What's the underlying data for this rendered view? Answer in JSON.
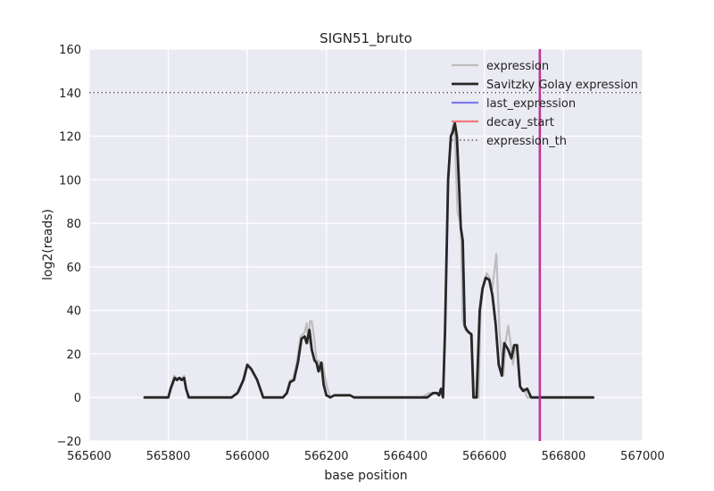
{
  "chart_data": {
    "type": "line",
    "title": "SIGN51_bruto",
    "xlabel": "base position",
    "ylabel": "log2(reads)",
    "xlim": [
      565600,
      567000
    ],
    "ylim": [
      -20,
      160
    ],
    "xticks": [
      565600,
      565800,
      566000,
      566200,
      566400,
      566600,
      566800,
      567000
    ],
    "yticks": [
      -20,
      0,
      20,
      40,
      60,
      80,
      100,
      120,
      140,
      160
    ],
    "xtick_labels": [
      "565600",
      "565800",
      "566000",
      "566200",
      "566400",
      "566600",
      "566800",
      "567000"
    ],
    "ytick_labels": [
      "−20",
      "0",
      "20",
      "40",
      "60",
      "80",
      "100",
      "120",
      "140",
      "160"
    ],
    "grid": true,
    "legend_position": "top-right",
    "legend": [
      "expression",
      "Savitzky Golay expression",
      "last_expression",
      "decay_start",
      "expression_th"
    ],
    "colors": {
      "expression": "#bdbdbd",
      "savgol": "#262626",
      "last_expression": "#7b7bf0",
      "decay_start": "#f07b7b",
      "overlap_line": "#c0339b",
      "threshold": "#444444",
      "background": "#eaeaf2",
      "grid": "#ffffff"
    },
    "expression_th": 140,
    "vertical_markers": {
      "last_expression": 566740,
      "decay_start": 566740
    },
    "series": [
      {
        "name": "expression",
        "x": [
          565740,
          565780,
          565790,
          565800,
          565805,
          565815,
          565820,
          565826,
          565832,
          565840,
          565845,
          565850,
          565900,
          565960,
          565980,
          565995,
          566000,
          566010,
          566025,
          566040,
          566050,
          566090,
          566100,
          566108,
          566115,
          566125,
          566135,
          566145,
          566150,
          566155,
          566158,
          566163,
          566170,
          566175,
          566180,
          566185,
          566190,
          566200,
          566210,
          566220,
          566240,
          566260,
          566270,
          566440,
          566460,
          566480,
          566485,
          566490,
          566495,
          566500,
          566508,
          566515,
          566520,
          566525,
          566532,
          566540,
          566545,
          566552,
          566558,
          566565,
          566575,
          566585,
          566590,
          566597,
          566605,
          566613,
          566620,
          566630,
          566638,
          566643,
          566648,
          566653,
          566660,
          566668,
          566672,
          566678,
          566684,
          566690,
          566695,
          566700,
          566708,
          566716,
          566722,
          566730,
          566740,
          566760,
          566875
        ],
        "y": [
          0,
          0,
          0,
          0,
          4,
          10,
          9,
          9,
          8,
          10,
          4,
          0,
          0,
          0,
          3,
          10,
          15,
          13,
          8,
          0,
          0,
          0,
          2,
          8,
          8,
          16,
          28,
          30,
          34,
          25,
          35,
          35,
          26,
          17,
          17,
          12,
          16,
          6,
          0,
          1,
          1,
          1,
          0,
          0,
          2,
          2,
          1,
          4,
          0,
          30,
          100,
          120,
          125,
          120,
          85,
          80,
          35,
          31,
          30,
          29,
          0,
          0,
          40,
          51,
          57,
          55,
          50,
          66,
          30,
          20,
          10,
          25,
          33,
          22,
          15,
          23,
          24,
          5,
          3,
          4,
          0,
          0,
          0,
          0,
          0,
          0,
          0
        ]
      },
      {
        "name": "Savitzky Golay expression",
        "x": [
          565740,
          565780,
          565790,
          565800,
          565806,
          565816,
          565822,
          565828,
          565834,
          565840,
          565845,
          565852,
          565900,
          565960,
          565975,
          565990,
          566000,
          566010,
          566025,
          566040,
          566050,
          566090,
          566100,
          566108,
          566118,
          566128,
          566137,
          566145,
          566150,
          566157,
          566163,
          566170,
          566175,
          566180,
          566187,
          566193,
          566200,
          566210,
          566220,
          566240,
          566260,
          566270,
          566440,
          566455,
          566470,
          566480,
          566485,
          566490,
          566495,
          566500,
          566508,
          566515,
          566520,
          566525,
          566530,
          566535,
          566540,
          566545,
          566550,
          566555,
          566560,
          566567,
          566572,
          566580,
          566588,
          566595,
          566603,
          566612,
          566620,
          566628,
          566636,
          566644,
          566650,
          566660,
          566668,
          566675,
          566682,
          566690,
          566698,
          566708,
          566718,
          566725,
          566740,
          566760,
          566875
        ],
        "y": [
          0,
          0,
          0,
          0,
          4,
          9,
          8,
          9,
          8,
          9,
          4,
          0,
          0,
          0,
          2,
          8,
          15,
          13,
          8,
          0,
          0,
          0,
          2,
          7,
          8,
          16,
          27,
          28,
          25,
          31,
          22,
          17,
          16,
          12,
          16,
          6,
          1,
          0,
          1,
          1,
          1,
          0,
          0,
          0,
          2,
          2,
          1,
          4,
          0,
          30,
          100,
          120,
          122,
          126,
          120,
          100,
          78,
          72,
          33,
          31,
          30,
          29,
          0,
          0,
          40,
          50,
          55,
          54,
          47,
          34,
          15,
          10,
          25,
          22,
          18,
          24,
          24,
          5,
          3,
          4,
          0,
          0,
          0,
          0,
          0
        ]
      }
    ]
  }
}
